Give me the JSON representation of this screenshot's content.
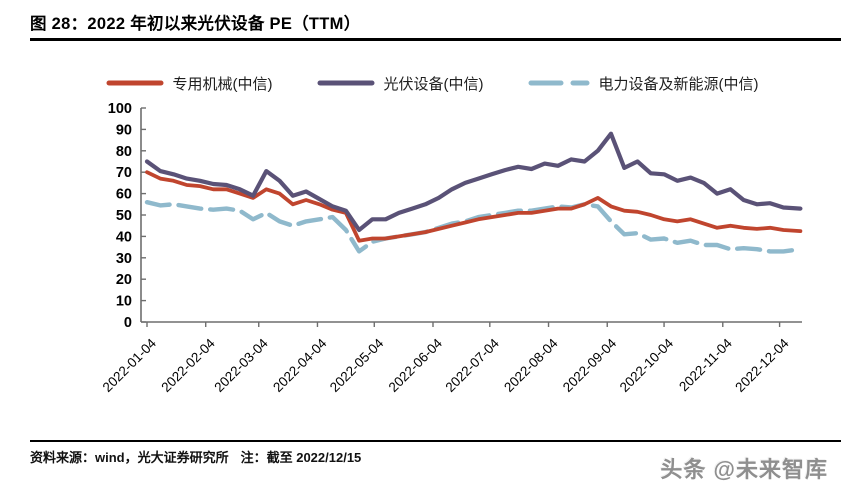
{
  "header": {
    "title": "图 28：2022 年初以来光伏设备 PE（TTM）"
  },
  "legend": [
    {
      "label": "专用机械(中信)",
      "color": "#c0452e",
      "dash": false
    },
    {
      "label": "光伏设备(中信)",
      "color": "#5a5277",
      "dash": false
    },
    {
      "label": "电力设备及新能源(中信)",
      "color": "#8fb9cc",
      "dash": true
    }
  ],
  "footer": {
    "source": "资料来源：wind，光大证券研究所",
    "note": "注：截至 2022/12/15"
  },
  "watermark": {
    "text": "头条 @未来智库"
  },
  "chart_data": {
    "type": "line",
    "title": "2022 年初以来光伏设备 PE（TTM）",
    "xlabel": "",
    "ylabel": "",
    "ylim": [
      0,
      100
    ],
    "y_ticks": [
      0,
      10,
      20,
      30,
      40,
      50,
      60,
      70,
      80,
      90,
      100
    ],
    "grid": false,
    "legend_position": "top",
    "x_range_note": "data from 2022-01-04 through 2022-12-15, x in days since 2022-01-04",
    "x_tick_labels": [
      "2022-01-04",
      "2022-02-04",
      "2022-03-04",
      "2022-04-04",
      "2022-05-04",
      "2022-06-04",
      "2022-07-04",
      "2022-08-04",
      "2022-09-04",
      "2022-10-04",
      "2022-11-04",
      "2022-12-04"
    ],
    "x_tick_days": [
      0,
      31,
      59,
      90,
      120,
      151,
      181,
      212,
      243,
      273,
      304,
      334
    ],
    "series": [
      {
        "name": "专用机械(中信)",
        "color": "#c0452e",
        "dash": false,
        "width": 3.8,
        "z": 2,
        "points": [
          [
            0,
            70
          ],
          [
            7,
            67
          ],
          [
            14,
            66
          ],
          [
            21,
            64
          ],
          [
            28,
            63.5
          ],
          [
            35,
            62
          ],
          [
            42,
            62
          ],
          [
            49,
            60
          ],
          [
            56,
            58
          ],
          [
            63,
            62
          ],
          [
            70,
            60
          ],
          [
            77,
            55
          ],
          [
            84,
            57
          ],
          [
            91,
            55
          ],
          [
            98,
            52.5
          ],
          [
            105,
            51
          ],
          [
            112,
            38
          ],
          [
            119,
            39
          ],
          [
            126,
            39
          ],
          [
            133,
            40
          ],
          [
            140,
            41
          ],
          [
            147,
            42
          ],
          [
            154,
            43.5
          ],
          [
            161,
            45
          ],
          [
            168,
            46.5
          ],
          [
            175,
            48
          ],
          [
            182,
            49
          ],
          [
            189,
            50
          ],
          [
            196,
            51
          ],
          [
            203,
            51
          ],
          [
            210,
            52
          ],
          [
            217,
            53
          ],
          [
            224,
            53
          ],
          [
            231,
            55
          ],
          [
            238,
            58
          ],
          [
            245,
            54
          ],
          [
            252,
            52
          ],
          [
            259,
            51.5
          ],
          [
            266,
            50
          ],
          [
            273,
            48
          ],
          [
            280,
            47
          ],
          [
            287,
            48
          ],
          [
            294,
            46
          ],
          [
            301,
            44
          ],
          [
            308,
            45
          ],
          [
            315,
            44
          ],
          [
            322,
            43.5
          ],
          [
            329,
            44
          ],
          [
            336,
            43
          ],
          [
            345,
            42.5
          ]
        ]
      },
      {
        "name": "光伏设备(中信)",
        "color": "#5a5277",
        "dash": false,
        "width": 4.2,
        "z": 3,
        "points": [
          [
            0,
            75
          ],
          [
            7,
            70.5
          ],
          [
            14,
            69
          ],
          [
            21,
            67
          ],
          [
            28,
            66
          ],
          [
            35,
            64.5
          ],
          [
            42,
            64
          ],
          [
            49,
            62
          ],
          [
            56,
            59
          ],
          [
            63,
            70.5
          ],
          [
            70,
            66
          ],
          [
            77,
            59
          ],
          [
            84,
            61
          ],
          [
            91,
            57.5
          ],
          [
            98,
            54
          ],
          [
            105,
            52
          ],
          [
            112,
            43
          ],
          [
            119,
            48
          ],
          [
            126,
            48
          ],
          [
            133,
            51
          ],
          [
            140,
            53
          ],
          [
            147,
            55
          ],
          [
            154,
            58
          ],
          [
            161,
            62
          ],
          [
            168,
            65
          ],
          [
            175,
            67
          ],
          [
            182,
            69
          ],
          [
            189,
            71
          ],
          [
            196,
            72.5
          ],
          [
            203,
            71.5
          ],
          [
            210,
            74
          ],
          [
            217,
            73
          ],
          [
            224,
            76
          ],
          [
            231,
            75
          ],
          [
            238,
            80
          ],
          [
            245,
            88
          ],
          [
            252,
            72
          ],
          [
            259,
            75
          ],
          [
            266,
            69.5
          ],
          [
            273,
            69
          ],
          [
            280,
            66
          ],
          [
            287,
            67.5
          ],
          [
            294,
            65
          ],
          [
            301,
            60
          ],
          [
            308,
            62
          ],
          [
            315,
            57
          ],
          [
            322,
            55
          ],
          [
            329,
            55.5
          ],
          [
            336,
            53.5
          ],
          [
            345,
            53
          ]
        ]
      },
      {
        "name": "电力设备及新能源(中信)",
        "color": "#8fb9cc",
        "dash": true,
        "width": 4.4,
        "z": 1,
        "points": [
          [
            0,
            56
          ],
          [
            7,
            54.5
          ],
          [
            14,
            55
          ],
          [
            21,
            54
          ],
          [
            28,
            53
          ],
          [
            35,
            52.5
          ],
          [
            42,
            53
          ],
          [
            49,
            52
          ],
          [
            56,
            48
          ],
          [
            63,
            51
          ],
          [
            70,
            47
          ],
          [
            77,
            45
          ],
          [
            84,
            47
          ],
          [
            91,
            48
          ],
          [
            98,
            49
          ],
          [
            105,
            43
          ],
          [
            112,
            33
          ],
          [
            119,
            37.5
          ],
          [
            126,
            39
          ],
          [
            133,
            40
          ],
          [
            140,
            41
          ],
          [
            147,
            42
          ],
          [
            154,
            44
          ],
          [
            161,
            46
          ],
          [
            168,
            47
          ],
          [
            175,
            49
          ],
          [
            182,
            50
          ],
          [
            189,
            51
          ],
          [
            196,
            52
          ],
          [
            203,
            52
          ],
          [
            210,
            53
          ],
          [
            217,
            54
          ],
          [
            224,
            53.5
          ],
          [
            231,
            55
          ],
          [
            238,
            54
          ],
          [
            245,
            47
          ],
          [
            252,
            41
          ],
          [
            259,
            41.5
          ],
          [
            266,
            38.5
          ],
          [
            273,
            39
          ],
          [
            280,
            37
          ],
          [
            287,
            38
          ],
          [
            294,
            36
          ],
          [
            301,
            36
          ],
          [
            308,
            34
          ],
          [
            315,
            34.5
          ],
          [
            322,
            34
          ],
          [
            329,
            33
          ],
          [
            336,
            33
          ],
          [
            345,
            34
          ]
        ]
      }
    ]
  }
}
